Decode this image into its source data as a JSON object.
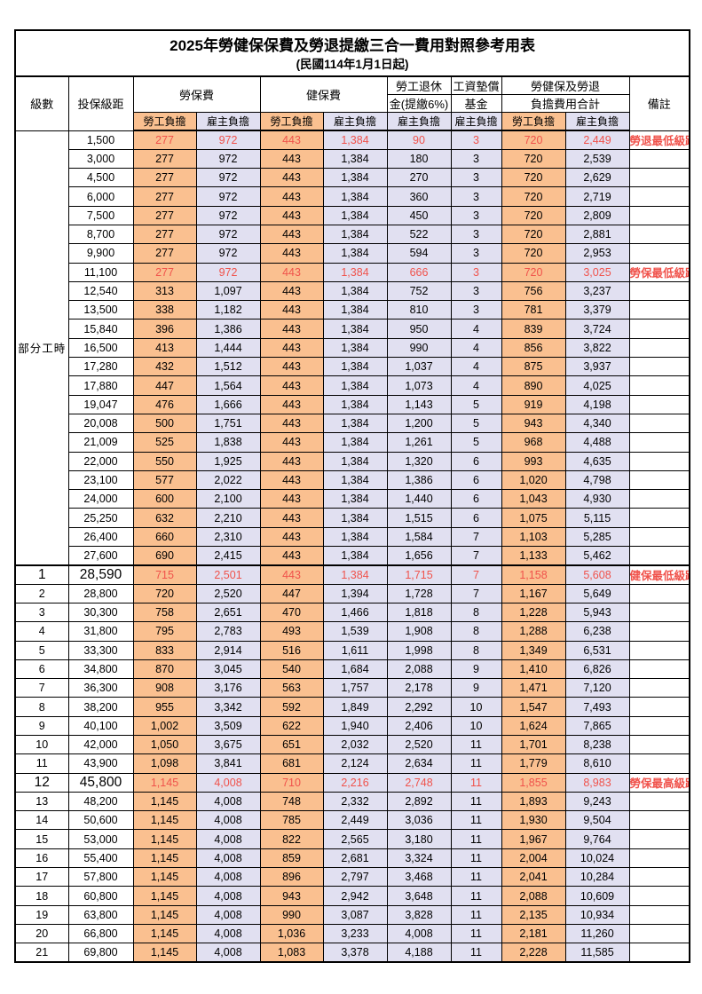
{
  "title": "2025年勞健保保費及勞退提繳三合一費用對照參考用表",
  "subtitle": "(民國114年1月1日起)",
  "colors": {
    "employee_bg": "#FAC090",
    "employer_bg": "#E1E0F1",
    "highlight_red": "#F0524B"
  },
  "header": {
    "level": "級數",
    "salary_bracket": "投保級距",
    "labor_insurance": "勞保費",
    "health_insurance": "健保費",
    "pension_line1": "勞工退休",
    "pension_line2": "金(提繳6%)",
    "wage_fund_line1": "工資墊償",
    "wage_fund_line2": "基金",
    "total_line1": "勞健保及勞退",
    "total_line2": "負擔費用合計",
    "employee_share": "勞工負擔",
    "employer_share": "雇主負擔",
    "remarks": "備註"
  },
  "part_time_label": "部分工時",
  "rows": [
    {
      "level": "",
      "salary": "1,500",
      "li_emp": "277",
      "li_er": "972",
      "hi_emp": "443",
      "hi_er": "1,384",
      "pension": "90",
      "fund": "3",
      "tot_emp": "720",
      "tot_er": "2,449",
      "note": "勞退最低級距",
      "red": true,
      "big": false
    },
    {
      "level": "",
      "salary": "3,000",
      "li_emp": "277",
      "li_er": "972",
      "hi_emp": "443",
      "hi_er": "1,384",
      "pension": "180",
      "fund": "3",
      "tot_emp": "720",
      "tot_er": "2,539",
      "note": "",
      "red": false,
      "big": false
    },
    {
      "level": "",
      "salary": "4,500",
      "li_emp": "277",
      "li_er": "972",
      "hi_emp": "443",
      "hi_er": "1,384",
      "pension": "270",
      "fund": "3",
      "tot_emp": "720",
      "tot_er": "2,629",
      "note": "",
      "red": false,
      "big": false
    },
    {
      "level": "",
      "salary": "6,000",
      "li_emp": "277",
      "li_er": "972",
      "hi_emp": "443",
      "hi_er": "1,384",
      "pension": "360",
      "fund": "3",
      "tot_emp": "720",
      "tot_er": "2,719",
      "note": "",
      "red": false,
      "big": false
    },
    {
      "level": "",
      "salary": "7,500",
      "li_emp": "277",
      "li_er": "972",
      "hi_emp": "443",
      "hi_er": "1,384",
      "pension": "450",
      "fund": "3",
      "tot_emp": "720",
      "tot_er": "2,809",
      "note": "",
      "red": false,
      "big": false
    },
    {
      "level": "",
      "salary": "8,700",
      "li_emp": "277",
      "li_er": "972",
      "hi_emp": "443",
      "hi_er": "1,384",
      "pension": "522",
      "fund": "3",
      "tot_emp": "720",
      "tot_er": "2,881",
      "note": "",
      "red": false,
      "big": false
    },
    {
      "level": "",
      "salary": "9,900",
      "li_emp": "277",
      "li_er": "972",
      "hi_emp": "443",
      "hi_er": "1,384",
      "pension": "594",
      "fund": "3",
      "tot_emp": "720",
      "tot_er": "2,953",
      "note": "",
      "red": false,
      "big": false
    },
    {
      "level": "",
      "salary": "11,100",
      "li_emp": "277",
      "li_er": "972",
      "hi_emp": "443",
      "hi_er": "1,384",
      "pension": "666",
      "fund": "3",
      "tot_emp": "720",
      "tot_er": "3,025",
      "note": "勞保最低級距",
      "red": true,
      "big": false
    },
    {
      "level": "",
      "salary": "12,540",
      "li_emp": "313",
      "li_er": "1,097",
      "hi_emp": "443",
      "hi_er": "1,384",
      "pension": "752",
      "fund": "3",
      "tot_emp": "756",
      "tot_er": "3,237",
      "note": "",
      "red": false,
      "big": false
    },
    {
      "level": "",
      "salary": "13,500",
      "li_emp": "338",
      "li_er": "1,182",
      "hi_emp": "443",
      "hi_er": "1,384",
      "pension": "810",
      "fund": "3",
      "tot_emp": "781",
      "tot_er": "3,379",
      "note": "",
      "red": false,
      "big": false
    },
    {
      "level": "",
      "salary": "15,840",
      "li_emp": "396",
      "li_er": "1,386",
      "hi_emp": "443",
      "hi_er": "1,384",
      "pension": "950",
      "fund": "4",
      "tot_emp": "839",
      "tot_er": "3,724",
      "note": "",
      "red": false,
      "big": false
    },
    {
      "level": "",
      "salary": "16,500",
      "li_emp": "413",
      "li_er": "1,444",
      "hi_emp": "443",
      "hi_er": "1,384",
      "pension": "990",
      "fund": "4",
      "tot_emp": "856",
      "tot_er": "3,822",
      "note": "",
      "red": false,
      "big": false
    },
    {
      "level": "",
      "salary": "17,280",
      "li_emp": "432",
      "li_er": "1,512",
      "hi_emp": "443",
      "hi_er": "1,384",
      "pension": "1,037",
      "fund": "4",
      "tot_emp": "875",
      "tot_er": "3,937",
      "note": "",
      "red": false,
      "big": false
    },
    {
      "level": "",
      "salary": "17,880",
      "li_emp": "447",
      "li_er": "1,564",
      "hi_emp": "443",
      "hi_er": "1,384",
      "pension": "1,073",
      "fund": "4",
      "tot_emp": "890",
      "tot_er": "4,025",
      "note": "",
      "red": false,
      "big": false
    },
    {
      "level": "",
      "salary": "19,047",
      "li_emp": "476",
      "li_er": "1,666",
      "hi_emp": "443",
      "hi_er": "1,384",
      "pension": "1,143",
      "fund": "5",
      "tot_emp": "919",
      "tot_er": "4,198",
      "note": "",
      "red": false,
      "big": false
    },
    {
      "level": "",
      "salary": "20,008",
      "li_emp": "500",
      "li_er": "1,751",
      "hi_emp": "443",
      "hi_er": "1,384",
      "pension": "1,200",
      "fund": "5",
      "tot_emp": "943",
      "tot_er": "4,340",
      "note": "",
      "red": false,
      "big": false
    },
    {
      "level": "",
      "salary": "21,009",
      "li_emp": "525",
      "li_er": "1,838",
      "hi_emp": "443",
      "hi_er": "1,384",
      "pension": "1,261",
      "fund": "5",
      "tot_emp": "968",
      "tot_er": "4,488",
      "note": "",
      "red": false,
      "big": false
    },
    {
      "level": "",
      "salary": "22,000",
      "li_emp": "550",
      "li_er": "1,925",
      "hi_emp": "443",
      "hi_er": "1,384",
      "pension": "1,320",
      "fund": "6",
      "tot_emp": "993",
      "tot_er": "4,635",
      "note": "",
      "red": false,
      "big": false
    },
    {
      "level": "",
      "salary": "23,100",
      "li_emp": "577",
      "li_er": "2,022",
      "hi_emp": "443",
      "hi_er": "1,384",
      "pension": "1,386",
      "fund": "6",
      "tot_emp": "1,020",
      "tot_er": "4,798",
      "note": "",
      "red": false,
      "big": false
    },
    {
      "level": "",
      "salary": "24,000",
      "li_emp": "600",
      "li_er": "2,100",
      "hi_emp": "443",
      "hi_er": "1,384",
      "pension": "1,440",
      "fund": "6",
      "tot_emp": "1,043",
      "tot_er": "4,930",
      "note": "",
      "red": false,
      "big": false
    },
    {
      "level": "",
      "salary": "25,250",
      "li_emp": "632",
      "li_er": "2,210",
      "hi_emp": "443",
      "hi_er": "1,384",
      "pension": "1,515",
      "fund": "6",
      "tot_emp": "1,075",
      "tot_er": "5,115",
      "note": "",
      "red": false,
      "big": false
    },
    {
      "level": "",
      "salary": "26,400",
      "li_emp": "660",
      "li_er": "2,310",
      "hi_emp": "443",
      "hi_er": "1,384",
      "pension": "1,584",
      "fund": "7",
      "tot_emp": "1,103",
      "tot_er": "5,285",
      "note": "",
      "red": false,
      "big": false
    },
    {
      "level": "",
      "salary": "27,600",
      "li_emp": "690",
      "li_er": "2,415",
      "hi_emp": "443",
      "hi_er": "1,384",
      "pension": "1,656",
      "fund": "7",
      "tot_emp": "1,133",
      "tot_er": "5,462",
      "note": "",
      "red": false,
      "big": false
    },
    {
      "level": "1",
      "salary": "28,590",
      "li_emp": "715",
      "li_er": "2,501",
      "hi_emp": "443",
      "hi_er": "1,384",
      "pension": "1,715",
      "fund": "7",
      "tot_emp": "1,158",
      "tot_er": "5,608",
      "note": "健保最低級距",
      "red": true,
      "big": true
    },
    {
      "level": "2",
      "salary": "28,800",
      "li_emp": "720",
      "li_er": "2,520",
      "hi_emp": "447",
      "hi_er": "1,394",
      "pension": "1,728",
      "fund": "7",
      "tot_emp": "1,167",
      "tot_er": "5,649",
      "note": "",
      "red": false,
      "big": false
    },
    {
      "level": "3",
      "salary": "30,300",
      "li_emp": "758",
      "li_er": "2,651",
      "hi_emp": "470",
      "hi_er": "1,466",
      "pension": "1,818",
      "fund": "8",
      "tot_emp": "1,228",
      "tot_er": "5,943",
      "note": "",
      "red": false,
      "big": false
    },
    {
      "level": "4",
      "salary": "31,800",
      "li_emp": "795",
      "li_er": "2,783",
      "hi_emp": "493",
      "hi_er": "1,539",
      "pension": "1,908",
      "fund": "8",
      "tot_emp": "1,288",
      "tot_er": "6,238",
      "note": "",
      "red": false,
      "big": false
    },
    {
      "level": "5",
      "salary": "33,300",
      "li_emp": "833",
      "li_er": "2,914",
      "hi_emp": "516",
      "hi_er": "1,611",
      "pension": "1,998",
      "fund": "8",
      "tot_emp": "1,349",
      "tot_er": "6,531",
      "note": "",
      "red": false,
      "big": false
    },
    {
      "level": "6",
      "salary": "34,800",
      "li_emp": "870",
      "li_er": "3,045",
      "hi_emp": "540",
      "hi_er": "1,684",
      "pension": "2,088",
      "fund": "9",
      "tot_emp": "1,410",
      "tot_er": "6,826",
      "note": "",
      "red": false,
      "big": false
    },
    {
      "level": "7",
      "salary": "36,300",
      "li_emp": "908",
      "li_er": "3,176",
      "hi_emp": "563",
      "hi_er": "1,757",
      "pension": "2,178",
      "fund": "9",
      "tot_emp": "1,471",
      "tot_er": "7,120",
      "note": "",
      "red": false,
      "big": false
    },
    {
      "level": "8",
      "salary": "38,200",
      "li_emp": "955",
      "li_er": "3,342",
      "hi_emp": "592",
      "hi_er": "1,849",
      "pension": "2,292",
      "fund": "10",
      "tot_emp": "1,547",
      "tot_er": "7,493",
      "note": "",
      "red": false,
      "big": false
    },
    {
      "level": "9",
      "salary": "40,100",
      "li_emp": "1,002",
      "li_er": "3,509",
      "hi_emp": "622",
      "hi_er": "1,940",
      "pension": "2,406",
      "fund": "10",
      "tot_emp": "1,624",
      "tot_er": "7,865",
      "note": "",
      "red": false,
      "big": false
    },
    {
      "level": "10",
      "salary": "42,000",
      "li_emp": "1,050",
      "li_er": "3,675",
      "hi_emp": "651",
      "hi_er": "2,032",
      "pension": "2,520",
      "fund": "11",
      "tot_emp": "1,701",
      "tot_er": "8,238",
      "note": "",
      "red": false,
      "big": false
    },
    {
      "level": "11",
      "salary": "43,900",
      "li_emp": "1,098",
      "li_er": "3,841",
      "hi_emp": "681",
      "hi_er": "2,124",
      "pension": "2,634",
      "fund": "11",
      "tot_emp": "1,779",
      "tot_er": "8,610",
      "note": "",
      "red": false,
      "big": false
    },
    {
      "level": "12",
      "salary": "45,800",
      "li_emp": "1,145",
      "li_er": "4,008",
      "hi_emp": "710",
      "hi_er": "2,216",
      "pension": "2,748",
      "fund": "11",
      "tot_emp": "1,855",
      "tot_er": "8,983",
      "note": "勞保最高級距",
      "red": true,
      "big": true
    },
    {
      "level": "13",
      "salary": "48,200",
      "li_emp": "1,145",
      "li_er": "4,008",
      "hi_emp": "748",
      "hi_er": "2,332",
      "pension": "2,892",
      "fund": "11",
      "tot_emp": "1,893",
      "tot_er": "9,243",
      "note": "",
      "red": false,
      "big": false
    },
    {
      "level": "14",
      "salary": "50,600",
      "li_emp": "1,145",
      "li_er": "4,008",
      "hi_emp": "785",
      "hi_er": "2,449",
      "pension": "3,036",
      "fund": "11",
      "tot_emp": "1,930",
      "tot_er": "9,504",
      "note": "",
      "red": false,
      "big": false
    },
    {
      "level": "15",
      "salary": "53,000",
      "li_emp": "1,145",
      "li_er": "4,008",
      "hi_emp": "822",
      "hi_er": "2,565",
      "pension": "3,180",
      "fund": "11",
      "tot_emp": "1,967",
      "tot_er": "9,764",
      "note": "",
      "red": false,
      "big": false
    },
    {
      "level": "16",
      "salary": "55,400",
      "li_emp": "1,145",
      "li_er": "4,008",
      "hi_emp": "859",
      "hi_er": "2,681",
      "pension": "3,324",
      "fund": "11",
      "tot_emp": "2,004",
      "tot_er": "10,024",
      "note": "",
      "red": false,
      "big": false
    },
    {
      "level": "17",
      "salary": "57,800",
      "li_emp": "1,145",
      "li_er": "4,008",
      "hi_emp": "896",
      "hi_er": "2,797",
      "pension": "3,468",
      "fund": "11",
      "tot_emp": "2,041",
      "tot_er": "10,284",
      "note": "",
      "red": false,
      "big": false
    },
    {
      "level": "18",
      "salary": "60,800",
      "li_emp": "1,145",
      "li_er": "4,008",
      "hi_emp": "943",
      "hi_er": "2,942",
      "pension": "3,648",
      "fund": "11",
      "tot_emp": "2,088",
      "tot_er": "10,609",
      "note": "",
      "red": false,
      "big": false
    },
    {
      "level": "19",
      "salary": "63,800",
      "li_emp": "1,145",
      "li_er": "4,008",
      "hi_emp": "990",
      "hi_er": "3,087",
      "pension": "3,828",
      "fund": "11",
      "tot_emp": "2,135",
      "tot_er": "10,934",
      "note": "",
      "red": false,
      "big": false
    },
    {
      "level": "20",
      "salary": "66,800",
      "li_emp": "1,145",
      "li_er": "4,008",
      "hi_emp": "1,036",
      "hi_er": "3,233",
      "pension": "4,008",
      "fund": "11",
      "tot_emp": "2,181",
      "tot_er": "11,260",
      "note": "",
      "red": false,
      "big": false
    },
    {
      "level": "21",
      "salary": "69,800",
      "li_emp": "1,145",
      "li_er": "4,008",
      "hi_emp": "1,083",
      "hi_er": "3,378",
      "pension": "4,188",
      "fund": "11",
      "tot_emp": "2,228",
      "tot_er": "11,585",
      "note": "",
      "red": false,
      "big": false
    }
  ]
}
